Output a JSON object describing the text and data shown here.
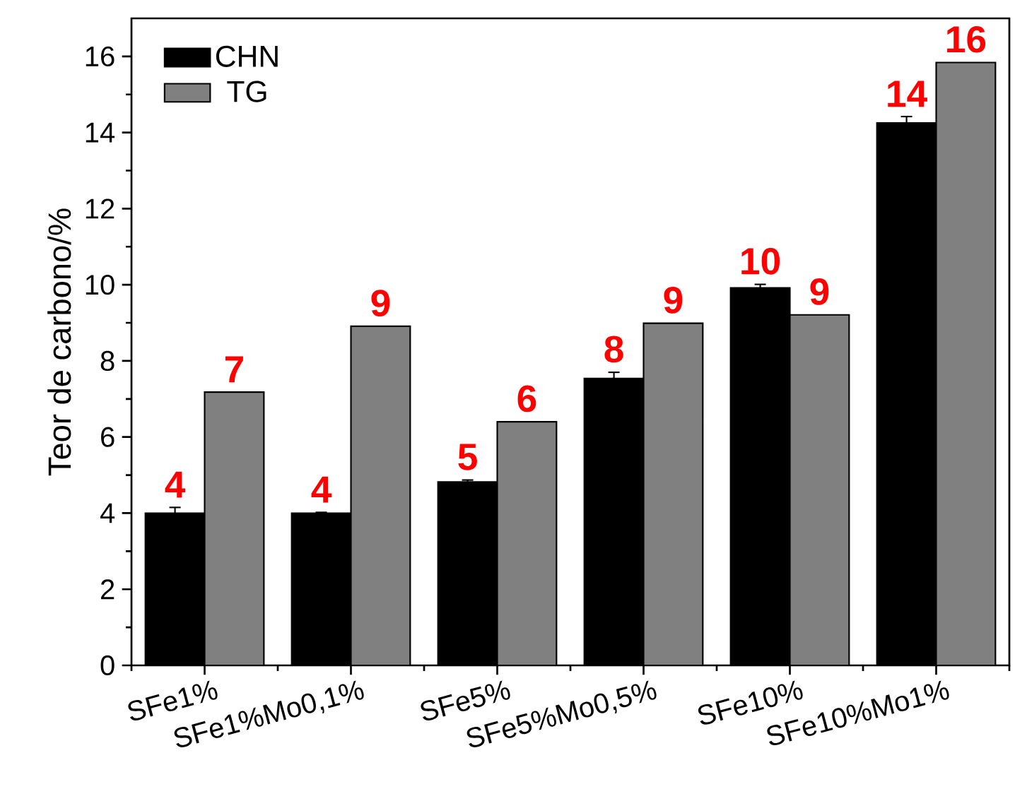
{
  "chart_data": {
    "type": "bar",
    "ylabel": "Teor de carbono/%",
    "categories": [
      "SFe1%",
      "SFe1%Mo0,1%",
      "SFe5%",
      "SFe5%Mo0,5%",
      "SFe10%",
      "SFe10%Mo1%"
    ],
    "series": [
      {
        "name": "CHN",
        "color": "#000000",
        "values": [
          4.0,
          4.0,
          4.82,
          7.54,
          9.92,
          14.25
        ],
        "errors": [
          0.15,
          0.02,
          0.05,
          0.16,
          0.09,
          0.17
        ],
        "value_labels": [
          "4",
          "4",
          "5",
          "8",
          "10",
          "14"
        ]
      },
      {
        "name": "TG",
        "color": "#808080",
        "values": [
          7.18,
          8.91,
          6.4,
          8.99,
          9.21,
          15.84
        ],
        "value_labels": [
          "7",
          "9",
          "6",
          "9",
          "9",
          "16"
        ]
      }
    ],
    "ylim": [
      0,
      17
    ],
    "yticks": [
      0,
      2,
      4,
      6,
      8,
      10,
      12,
      14,
      16
    ],
    "grid": false,
    "legend": "top left"
  }
}
